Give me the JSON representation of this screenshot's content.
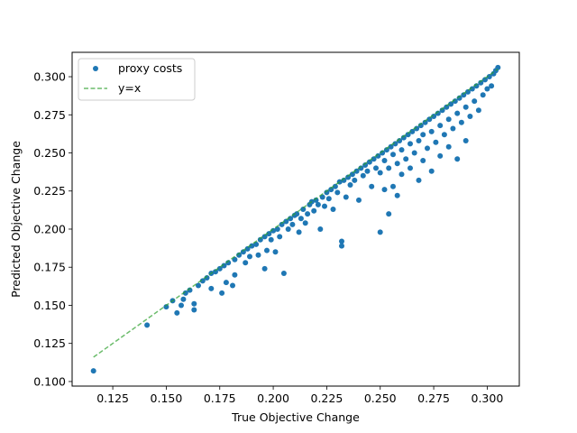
{
  "chart_data": {
    "type": "scatter",
    "title": "",
    "xlabel": "True Objective Change",
    "ylabel": "Predicted Objective Change",
    "xlim": [
      0.106,
      0.315
    ],
    "ylim": [
      0.097,
      0.316
    ],
    "xticks": [
      0.125,
      0.15,
      0.175,
      0.2,
      0.225,
      0.25,
      0.275,
      0.3
    ],
    "xtick_labels": [
      "0.125",
      "0.150",
      "0.175",
      "0.200",
      "0.225",
      "0.250",
      "0.275",
      "0.300"
    ],
    "yticks": [
      0.1,
      0.125,
      0.15,
      0.175,
      0.2,
      0.225,
      0.25,
      0.275,
      0.3
    ],
    "ytick_labels": [
      "0.100",
      "0.125",
      "0.150",
      "0.175",
      "0.200",
      "0.225",
      "0.250",
      "0.275",
      "0.300"
    ],
    "grid": false,
    "legend": {
      "placement": "upper left",
      "entries": [
        "proxy costs",
        "y=x"
      ]
    },
    "colors": {
      "scatter": "#1f77b4",
      "line": "#2ca02c"
    },
    "series": [
      {
        "name": "proxy costs",
        "kind": "scatter",
        "points": [
          [
            0.116,
            0.107
          ],
          [
            0.141,
            0.137
          ],
          [
            0.15,
            0.149
          ],
          [
            0.153,
            0.153
          ],
          [
            0.155,
            0.145
          ],
          [
            0.157,
            0.15
          ],
          [
            0.158,
            0.154
          ],
          [
            0.159,
            0.158
          ],
          [
            0.161,
            0.16
          ],
          [
            0.163,
            0.147
          ],
          [
            0.163,
            0.151
          ],
          [
            0.165,
            0.163
          ],
          [
            0.167,
            0.166
          ],
          [
            0.169,
            0.168
          ],
          [
            0.171,
            0.161
          ],
          [
            0.171,
            0.171
          ],
          [
            0.173,
            0.172
          ],
          [
            0.175,
            0.174
          ],
          [
            0.176,
            0.158
          ],
          [
            0.177,
            0.176
          ],
          [
            0.178,
            0.165
          ],
          [
            0.179,
            0.178
          ],
          [
            0.181,
            0.163
          ],
          [
            0.182,
            0.17
          ],
          [
            0.182,
            0.18
          ],
          [
            0.184,
            0.183
          ],
          [
            0.186,
            0.185
          ],
          [
            0.187,
            0.178
          ],
          [
            0.188,
            0.187
          ],
          [
            0.189,
            0.182
          ],
          [
            0.19,
            0.189
          ],
          [
            0.192,
            0.19
          ],
          [
            0.193,
            0.183
          ],
          [
            0.194,
            0.193
          ],
          [
            0.196,
            0.195
          ],
          [
            0.196,
            0.174
          ],
          [
            0.197,
            0.186
          ],
          [
            0.198,
            0.197
          ],
          [
            0.199,
            0.193
          ],
          [
            0.2,
            0.199
          ],
          [
            0.201,
            0.185
          ],
          [
            0.202,
            0.2
          ],
          [
            0.203,
            0.195
          ],
          [
            0.204,
            0.203
          ],
          [
            0.205,
            0.171
          ],
          [
            0.206,
            0.205
          ],
          [
            0.207,
            0.2
          ],
          [
            0.208,
            0.207
          ],
          [
            0.209,
            0.203
          ],
          [
            0.21,
            0.209
          ],
          [
            0.211,
            0.21
          ],
          [
            0.212,
            0.198
          ],
          [
            0.213,
            0.207
          ],
          [
            0.214,
            0.213
          ],
          [
            0.215,
            0.204
          ],
          [
            0.216,
            0.21
          ],
          [
            0.217,
            0.216
          ],
          [
            0.218,
            0.218
          ],
          [
            0.219,
            0.212
          ],
          [
            0.22,
            0.219
          ],
          [
            0.221,
            0.216
          ],
          [
            0.222,
            0.2
          ],
          [
            0.223,
            0.221
          ],
          [
            0.224,
            0.215
          ],
          [
            0.225,
            0.224
          ],
          [
            0.226,
            0.22
          ],
          [
            0.227,
            0.226
          ],
          [
            0.228,
            0.213
          ],
          [
            0.229,
            0.228
          ],
          [
            0.23,
            0.224
          ],
          [
            0.231,
            0.231
          ],
          [
            0.232,
            0.192
          ],
          [
            0.232,
            0.189
          ],
          [
            0.233,
            0.232
          ],
          [
            0.234,
            0.221
          ],
          [
            0.235,
            0.234
          ],
          [
            0.236,
            0.229
          ],
          [
            0.237,
            0.236
          ],
          [
            0.238,
            0.232
          ],
          [
            0.239,
            0.238
          ],
          [
            0.24,
            0.219
          ],
          [
            0.241,
            0.24
          ],
          [
            0.242,
            0.235
          ],
          [
            0.243,
            0.242
          ],
          [
            0.244,
            0.238
          ],
          [
            0.245,
            0.244
          ],
          [
            0.246,
            0.228
          ],
          [
            0.247,
            0.246
          ],
          [
            0.248,
            0.24
          ],
          [
            0.249,
            0.248
          ],
          [
            0.25,
            0.198
          ],
          [
            0.25,
            0.237
          ],
          [
            0.251,
            0.25
          ],
          [
            0.252,
            0.226
          ],
          [
            0.252,
            0.245
          ],
          [
            0.253,
            0.252
          ],
          [
            0.254,
            0.21
          ],
          [
            0.254,
            0.24
          ],
          [
            0.255,
            0.254
          ],
          [
            0.256,
            0.228
          ],
          [
            0.256,
            0.249
          ],
          [
            0.257,
            0.256
          ],
          [
            0.258,
            0.222
          ],
          [
            0.258,
            0.243
          ],
          [
            0.259,
            0.258
          ],
          [
            0.26,
            0.236
          ],
          [
            0.26,
            0.252
          ],
          [
            0.261,
            0.26
          ],
          [
            0.262,
            0.246
          ],
          [
            0.263,
            0.262
          ],
          [
            0.264,
            0.24
          ],
          [
            0.264,
            0.256
          ],
          [
            0.265,
            0.264
          ],
          [
            0.266,
            0.25
          ],
          [
            0.267,
            0.266
          ],
          [
            0.268,
            0.232
          ],
          [
            0.268,
            0.258
          ],
          [
            0.269,
            0.268
          ],
          [
            0.27,
            0.245
          ],
          [
            0.27,
            0.262
          ],
          [
            0.271,
            0.27
          ],
          [
            0.272,
            0.253
          ],
          [
            0.273,
            0.272
          ],
          [
            0.274,
            0.238
          ],
          [
            0.274,
            0.264
          ],
          [
            0.275,
            0.274
          ],
          [
            0.276,
            0.257
          ],
          [
            0.277,
            0.276
          ],
          [
            0.278,
            0.248
          ],
          [
            0.278,
            0.268
          ],
          [
            0.279,
            0.278
          ],
          [
            0.28,
            0.262
          ],
          [
            0.281,
            0.28
          ],
          [
            0.282,
            0.254
          ],
          [
            0.282,
            0.272
          ],
          [
            0.283,
            0.282
          ],
          [
            0.284,
            0.266
          ],
          [
            0.285,
            0.284
          ],
          [
            0.286,
            0.246
          ],
          [
            0.286,
            0.276
          ],
          [
            0.287,
            0.286
          ],
          [
            0.288,
            0.27
          ],
          [
            0.289,
            0.288
          ],
          [
            0.29,
            0.258
          ],
          [
            0.29,
            0.28
          ],
          [
            0.291,
            0.29
          ],
          [
            0.292,
            0.274
          ],
          [
            0.293,
            0.292
          ],
          [
            0.294,
            0.284
          ],
          [
            0.295,
            0.294
          ],
          [
            0.296,
            0.278
          ],
          [
            0.297,
            0.296
          ],
          [
            0.298,
            0.288
          ],
          [
            0.299,
            0.298
          ],
          [
            0.3,
            0.292
          ],
          [
            0.301,
            0.3
          ],
          [
            0.302,
            0.294
          ],
          [
            0.303,
            0.302
          ],
          [
            0.304,
            0.304
          ],
          [
            0.305,
            0.306
          ]
        ]
      },
      {
        "name": "y=x",
        "kind": "line",
        "style": "dashed",
        "x": [
          0.116,
          0.305
        ],
        "y": [
          0.116,
          0.305
        ]
      }
    ]
  }
}
